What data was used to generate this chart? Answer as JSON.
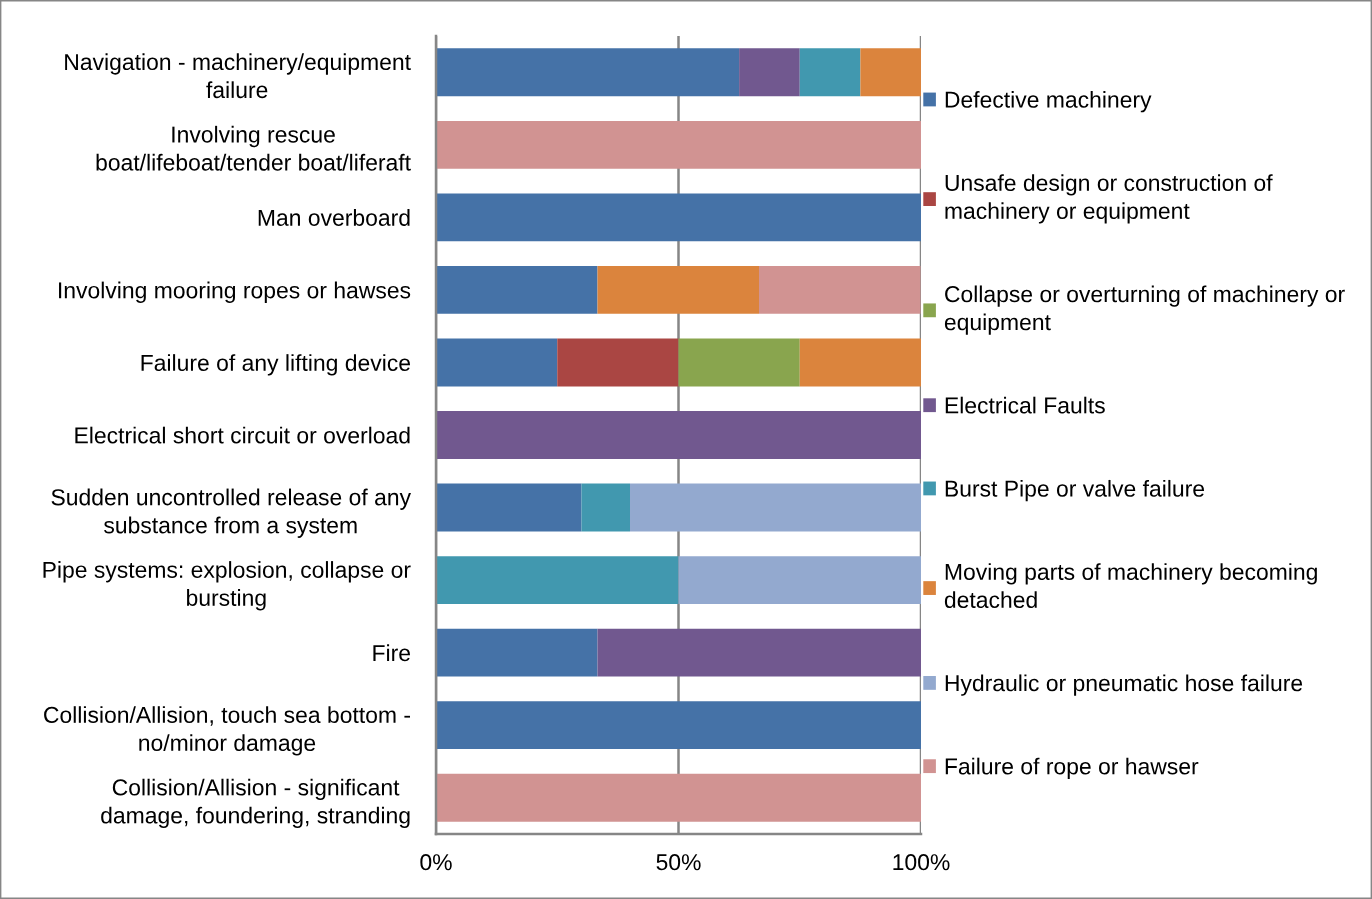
{
  "chart_data": {
    "type": "bar",
    "orientation": "horizontal",
    "stacked": true,
    "categories": [
      "Navigation - machinery/equipment\nfailure",
      "Involving rescue\nboat/lifeboat/tender boat/liferaft",
      "Man overboard",
      "Involving mooring ropes or hawses",
      "Failure of any lifting device",
      "Electrical short circuit or overload",
      "Sudden uncontrolled release of any\nsubstance from a system",
      "Pipe systems: explosion, collapse or\nbursting",
      "Fire",
      "Collision/Allision, touch sea bottom -\nno/minor damage",
      "Collision/Allision - significant\ndamage, foundering, stranding"
    ],
    "series": [
      {
        "name": "Defective machinery",
        "color": "#4572a7",
        "values": [
          62.5,
          null,
          100,
          33.3,
          25,
          null,
          30,
          null,
          33.3,
          100,
          null
        ]
      },
      {
        "name": "Unsafe design or construction of\nmachinery or equipment",
        "color": "#aa4643",
        "values": [
          null,
          null,
          null,
          null,
          25,
          null,
          null,
          null,
          null,
          null,
          null
        ]
      },
      {
        "name": "Collapse or overturning of machinery or\nequipment",
        "color": "#89a54e",
        "values": [
          null,
          null,
          null,
          null,
          25,
          null,
          null,
          null,
          null,
          null,
          null
        ]
      },
      {
        "name": "Electrical Faults",
        "color": "#71588f",
        "values": [
          12.5,
          null,
          null,
          null,
          null,
          100,
          null,
          null,
          66.7,
          null,
          null
        ]
      },
      {
        "name": "Burst Pipe or valve failure",
        "color": "#4198af",
        "values": [
          12.5,
          null,
          null,
          null,
          null,
          null,
          10,
          50,
          null,
          null,
          null
        ]
      },
      {
        "name": "Moving parts of machinery becoming\ndetached",
        "color": "#db843d",
        "values": [
          12.5,
          null,
          null,
          33.3,
          25,
          null,
          null,
          null,
          null,
          null,
          null
        ]
      },
      {
        "name": "Hydraulic or pneumatic hose failure",
        "color": "#93a9cf",
        "values": [
          null,
          null,
          null,
          null,
          null,
          null,
          60,
          50,
          null,
          null,
          null
        ]
      },
      {
        "name": "Failure of rope or hawser",
        "color": "#d19392",
        "values": [
          null,
          100,
          null,
          33.3,
          null,
          null,
          null,
          null,
          null,
          null,
          100
        ]
      }
    ],
    "xlim": [
      0,
      100
    ],
    "xticks": [
      {
        "value": 0,
        "label": "0%"
      },
      {
        "value": 50,
        "label": "50%"
      },
      {
        "value": 100,
        "label": "100%"
      }
    ],
    "grid": "x",
    "legend": "right"
  }
}
